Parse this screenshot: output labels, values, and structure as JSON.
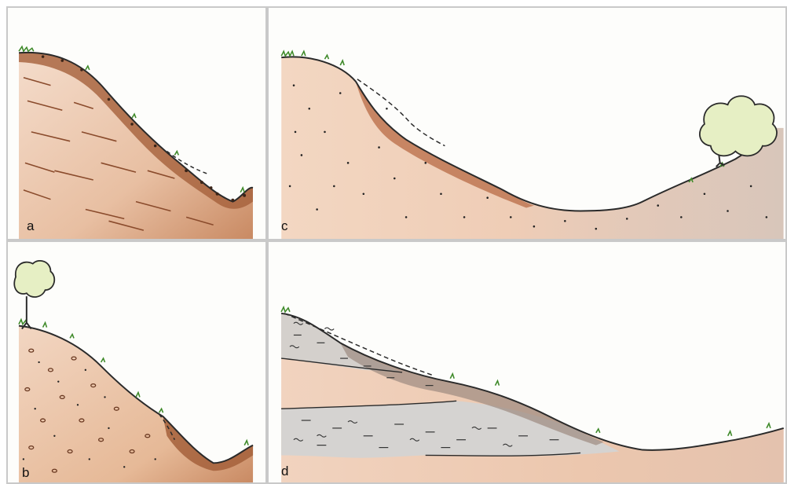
{
  "panels": [
    {
      "id": "a",
      "label": "a",
      "subject": "slope-with-layered-rock-and-colluvium"
    },
    {
      "id": "b",
      "label": "b",
      "subject": "slope-with-gravelly-soil-and-tree"
    },
    {
      "id": "c",
      "label": "c",
      "subject": "valley-with-dotted-sediment-and-tree"
    },
    {
      "id": "d",
      "label": "d",
      "subject": "slope-with-stratified-layers"
    }
  ],
  "colors": {
    "soil": "#c9875f",
    "soil_light": "#e8c4a8",
    "soil_dark": "#8a4b2c",
    "grass": "#3f8a2a",
    "tree_foliage": "#e6efc4",
    "grey_layer": "#d0d0d0",
    "outline": "#2a2a2a",
    "border": "#c9c9c9"
  }
}
